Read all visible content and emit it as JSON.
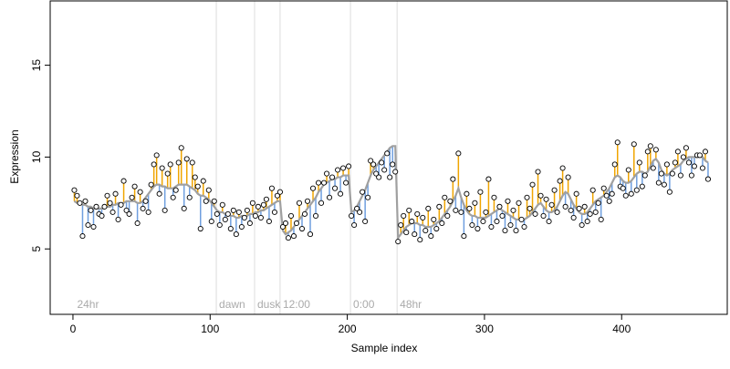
{
  "chart_data": {
    "type": "scatter",
    "x_label": "Sample index",
    "y_label": "Expression",
    "xlim": [
      -16.6,
      477
    ],
    "ylim": [
      1.44,
      18.5
    ],
    "xticks": [
      0,
      100,
      200,
      300,
      400
    ],
    "yticks": [
      5,
      10,
      15
    ],
    "point_color": "#ffffff",
    "fit_color": "#a0a0a0",
    "above_color": "#f0a500",
    "below_color": "#6f9fdf",
    "vline_color": "#dddddd",
    "vlines": [
      104.5,
      132.4,
      151,
      202.3,
      236.3
    ],
    "annotations": [
      {
        "label": "24hr",
        "x": 1
      },
      {
        "label": "dawn",
        "x": 104.5
      },
      {
        "label": "dusk",
        "x": 132.4
      },
      {
        "label": "12:00",
        "x": 151
      },
      {
        "label": "0:00",
        "x": 202.3
      },
      {
        "label": "48hr",
        "x": 236.3
      }
    ],
    "x": [
      1,
      3,
      5,
      7,
      9,
      11,
      13,
      15,
      17,
      19,
      21,
      23,
      25,
      27,
      29,
      31,
      33,
      35,
      37,
      39,
      41,
      43,
      45,
      47,
      49,
      51,
      53,
      55,
      57,
      59,
      61,
      63,
      65,
      67,
      69,
      71,
      73,
      75,
      77,
      79,
      81,
      83,
      85,
      87,
      89,
      91,
      93,
      95,
      97,
      99,
      101,
      103,
      105,
      107,
      109,
      111,
      113,
      115,
      117,
      119,
      121,
      123,
      125,
      127,
      129,
      131,
      133,
      135,
      137,
      139,
      141,
      143,
      145,
      147,
      149,
      151,
      153,
      155,
      157,
      159,
      161,
      163,
      165,
      167,
      169,
      171,
      173,
      175,
      177,
      179,
      181,
      183,
      185,
      187,
      189,
      191,
      193,
      195,
      197,
      199,
      201,
      203,
      205,
      207,
      209,
      211,
      213,
      215,
      217,
      219,
      221,
      223,
      225,
      227,
      229,
      231,
      233,
      235,
      237,
      239,
      241,
      243,
      245,
      247,
      249,
      251,
      253,
      255,
      257,
      259,
      261,
      263,
      265,
      267,
      269,
      271,
      273,
      275,
      277,
      279,
      281,
      283,
      285,
      287,
      289,
      291,
      293,
      295,
      297,
      299,
      301,
      303,
      305,
      307,
      309,
      311,
      313,
      315,
      317,
      319,
      321,
      323,
      325,
      327,
      329,
      331,
      333,
      335,
      337,
      339,
      341,
      343,
      345,
      347,
      349,
      351,
      353,
      355,
      357,
      359,
      361,
      363,
      365,
      367,
      369,
      371,
      373,
      375,
      377,
      379,
      381,
      383,
      385,
      387,
      389,
      391,
      393,
      395,
      397,
      399,
      401,
      403,
      405,
      407,
      409,
      411,
      413,
      415,
      417,
      419,
      421,
      423,
      425,
      427,
      429,
      431,
      433,
      435,
      437,
      439,
      441,
      443,
      445,
      447,
      449,
      451,
      453,
      455,
      457,
      459,
      461,
      463
    ],
    "values": [
      8.2,
      7.9,
      7.5,
      5.7,
      7.6,
      6.3,
      7.1,
      6.2,
      7.3,
      6.9,
      6.8,
      7.3,
      7.9,
      7.5,
      7.0,
      8.0,
      6.6,
      7.4,
      8.7,
      7.1,
      6.9,
      7.8,
      8.4,
      6.4,
      8.1,
      7.2,
      7.6,
      7.0,
      8.5,
      9.6,
      10.1,
      8.0,
      9.4,
      7.1,
      9.1,
      9.6,
      7.8,
      8.2,
      9.7,
      10.5,
      7.2,
      9.9,
      7.8,
      9.7,
      8.9,
      8.4,
      6.1,
      8.7,
      7.6,
      8.2,
      6.5,
      7.6,
      6.9,
      6.3,
      7.4,
      6.6,
      6.9,
      6.1,
      7.1,
      5.8,
      7.0,
      6.2,
      6.7,
      7.1,
      6.4,
      7.5,
      6.8,
      7.3,
      6.7,
      7.4,
      7.7,
      6.5,
      8.3,
      7.0,
      7.9,
      8.1,
      6.2,
      6.4,
      5.6,
      6.8,
      5.7,
      6.4,
      7.5,
      6.1,
      6.9,
      7.6,
      5.8,
      8.3,
      6.8,
      8.6,
      7.5,
      8.6,
      9.1,
      7.8,
      8.9,
      8.3,
      9.3,
      8.0,
      9.4,
      8.6,
      9.5,
      6.8,
      6.3,
      7.2,
      7.0,
      8.1,
      6.5,
      7.8,
      9.8,
      9.6,
      9.1,
      8.9,
      9.7,
      9.3,
      10.2,
      8.9,
      9.6,
      9.2,
      5.4,
      6.3,
      6.8,
      5.9,
      7.1,
      6.5,
      5.8,
      6.9,
      5.5,
      6.7,
      6.0,
      7.2,
      5.7,
      6.6,
      6.1,
      7.3,
      6.4,
      7.8,
      6.8,
      7.6,
      8.8,
      7.1,
      10.2,
      7.0,
      5.7,
      8.0,
      7.2,
      6.3,
      7.5,
      6.1,
      8.1,
      6.5,
      7.0,
      8.8,
      6.2,
      7.8,
      6.5,
      7.3,
      6.8,
      6.0,
      7.6,
      6.3,
      7.1,
      6.0,
      7.5,
      6.6,
      6.2,
      7.8,
      7.2,
      8.5,
      6.9,
      9.2,
      7.9,
      6.8,
      7.7,
      6.5,
      7.4,
      8.2,
      7.0,
      8.7,
      9.4,
      7.3,
      8.9,
      7.1,
      6.7,
      8.0,
      7.2,
      6.3,
      7.3,
      6.5,
      6.9,
      8.2,
      7.0,
      7.5,
      6.6,
      8.3,
      7.9,
      7.6,
      8.0,
      9.6,
      10.8,
      8.4,
      8.3,
      7.9,
      9.3,
      8.0,
      10.7,
      8.2,
      9.7,
      8.4,
      9.0,
      10.3,
      10.6,
      9.4,
      10.4,
      8.6,
      9.1,
      8.5,
      9.6,
      8.1,
      9.1,
      9.7,
      10.3,
      9.0,
      10.0,
      10.5,
      9.7,
      9.0,
      9.5,
      10.1,
      10.1,
      9.4,
      10.3,
      8.8
    ],
    "fitted": [
      7.6,
      7.5,
      7.5,
      7.4,
      7.4,
      7.3,
      7.3,
      7.2,
      7.2,
      7.2,
      7.2,
      7.2,
      7.3,
      7.3,
      7.4,
      7.4,
      7.5,
      7.5,
      7.5,
      7.6,
      7.6,
      7.6,
      7.6,
      7.5,
      7.5,
      7.6,
      7.8,
      8.0,
      8.2,
      8.4,
      8.5,
      8.5,
      8.4,
      8.4,
      8.3,
      8.3,
      8.3,
      8.4,
      8.5,
      8.5,
      8.5,
      8.5,
      8.4,
      8.3,
      8.2,
      8.0,
      7.9,
      7.9,
      7.8,
      7.7,
      7.5,
      7.3,
      7.1,
      7.0,
      7.0,
      6.9,
      6.9,
      6.8,
      6.8,
      6.7,
      6.7,
      6.8,
      6.8,
      6.8,
      6.9,
      6.9,
      7.0,
      7.0,
      7.1,
      7.1,
      7.2,
      7.3,
      7.4,
      7.5,
      7.6,
      7.6,
      6.0,
      5.8,
      5.9,
      6.0,
      6.2,
      6.4,
      6.6,
      6.8,
      7.0,
      7.2,
      7.4,
      7.6,
      7.8,
      8.1,
      8.3,
      8.5,
      8.6,
      8.7,
      8.8,
      8.8,
      8.9,
      8.9,
      9.0,
      9.0,
      9.0,
      7.0,
      7.1,
      7.3,
      7.6,
      7.9,
      8.2,
      8.6,
      9.0,
      9.3,
      9.5,
      9.7,
      9.9,
      10.1,
      10.3,
      10.5,
      10.6,
      10.6,
      5.6,
      5.8,
      6.0,
      6.2,
      6.3,
      6.4,
      6.4,
      6.4,
      6.3,
      6.3,
      6.2,
      6.2,
      6.2,
      6.3,
      6.4,
      6.5,
      6.7,
      6.9,
      7.1,
      7.3,
      7.6,
      7.9,
      8.3,
      7.8,
      7.4,
      7.1,
      6.9,
      6.8,
      6.8,
      6.7,
      6.7,
      6.7,
      6.7,
      6.8,
      6.9,
      7.0,
      7.1,
      7.2,
      7.1,
      7.0,
      6.9,
      6.8,
      6.7,
      6.6,
      6.6,
      6.6,
      6.6,
      6.7,
      6.8,
      7.0,
      7.2,
      7.4,
      7.5,
      7.3,
      7.1,
      7.0,
      7.0,
      7.1,
      7.3,
      7.6,
      7.9,
      8.1,
      8.0,
      7.7,
      7.4,
      7.2,
      7.0,
      6.9,
      6.9,
      7.0,
      7.2,
      7.4,
      7.6,
      7.7,
      7.8,
      7.9,
      8.1,
      8.3,
      8.6,
      8.9,
      9.0,
      8.9,
      8.7,
      8.6,
      8.6,
      8.7,
      8.9,
      9.1,
      9.2,
      9.2,
      9.1,
      9.2,
      9.5,
      9.8,
      9.9,
      9.7,
      9.3,
      9.1,
      9.0,
      9.1,
      9.3,
      9.4,
      9.5,
      9.6,
      9.8,
      9.9,
      10.0,
      10.0,
      10.0,
      10.0,
      10.0,
      10.0,
      9.8,
      9.7
    ]
  }
}
